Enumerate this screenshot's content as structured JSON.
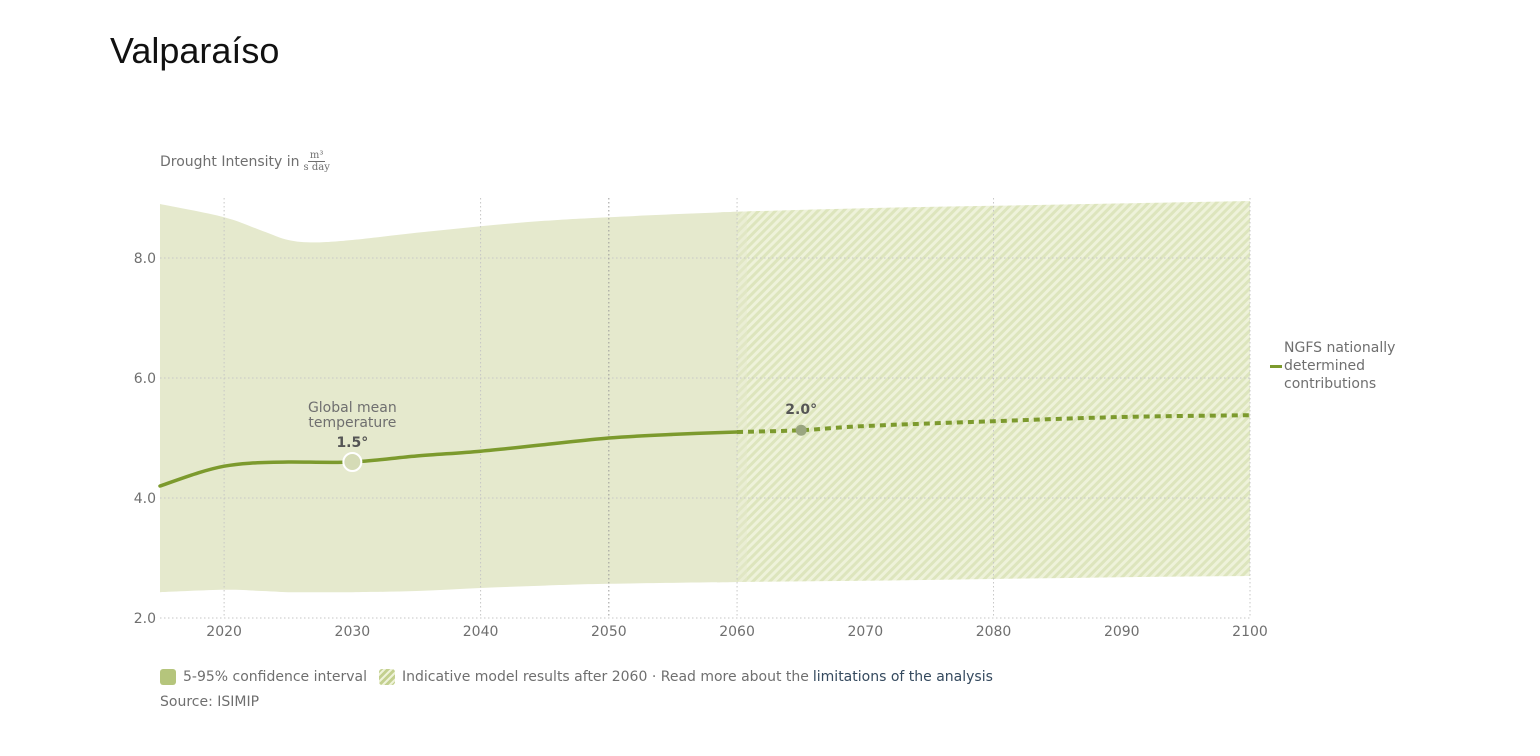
{
  "page_title": "Valparaíso",
  "y_axis_label": {
    "prefix": "Drought Intensity in",
    "unit_numerator": "m³",
    "unit_denominator": "s day"
  },
  "colors": {
    "line": "#7c9a2d",
    "band": "#e5e9cd",
    "hatch": "#d9e2b3",
    "grid": "#bfbfbf",
    "text": "#6f6f6f",
    "link": "#34495e"
  },
  "legend_series": "NGFS nationally determined contributions",
  "legend_series_lines": [
    "NGFS nationally",
    "determined",
    "contributions"
  ],
  "bottom_legend": {
    "confidence": "5-95% confidence interval",
    "indicative": "Indicative model results after 2060 · Read more about the",
    "link": "limitations of the analysis"
  },
  "source": "Source: ISIMIP",
  "annotations": {
    "global_mean_line1": "Global mean",
    "global_mean_line2": "temperature",
    "marker_1": "1.5°",
    "marker_2": "2.0°"
  },
  "chart_data": {
    "type": "line",
    "title": "Valparaíso",
    "xlabel": "",
    "ylabel": "Drought Intensity in m³/(s day)",
    "xlim": [
      2015,
      2100
    ],
    "ylim": [
      2.0,
      9.0
    ],
    "x_ticks": [
      2020,
      2030,
      2040,
      2050,
      2060,
      2070,
      2080,
      2090,
      2100
    ],
    "x_tick_labels": [
      "2020",
      "2030",
      "2040",
      "2050",
      "2060",
      "2070",
      "2080",
      "2090",
      "2100"
    ],
    "x_gridlines": [
      2020,
      2040,
      2050,
      2060,
      2080,
      2100
    ],
    "y_ticks": [
      2.0,
      4.0,
      6.0,
      8.0
    ],
    "y_tick_labels": [
      "2.0",
      "4.0",
      "6.0",
      "8.0"
    ],
    "grid": true,
    "indicative_after": 2060,
    "series": [
      {
        "name": "NGFS nationally determined contributions",
        "x": [
          2015,
          2018,
          2020,
          2022,
          2025,
          2030,
          2035,
          2040,
          2045,
          2050,
          2055,
          2060,
          2065,
          2070,
          2080,
          2090,
          2100
        ],
        "values": [
          4.2,
          4.42,
          4.53,
          4.58,
          4.6,
          4.6,
          4.7,
          4.78,
          4.89,
          5.0,
          5.06,
          5.1,
          5.13,
          5.2,
          5.28,
          5.35,
          5.38
        ]
      }
    ],
    "band": {
      "name": "5-95% confidence interval",
      "x": [
        2015,
        2020,
        2023,
        2025,
        2027,
        2030,
        2035,
        2040,
        2045,
        2050,
        2060,
        2070,
        2080,
        2090,
        2100
      ],
      "upper": [
        8.9,
        8.68,
        8.45,
        8.3,
        8.26,
        8.3,
        8.42,
        8.53,
        8.62,
        8.68,
        8.77,
        8.83,
        8.87,
        8.91,
        8.95
      ],
      "lower": [
        2.43,
        2.47,
        2.45,
        2.43,
        2.43,
        2.43,
        2.45,
        2.5,
        2.54,
        2.57,
        2.6,
        2.62,
        2.65,
        2.68,
        2.7
      ]
    },
    "markers": [
      {
        "x": 2030,
        "y": 4.6,
        "label": "1.5°",
        "annotation": "Global mean temperature"
      },
      {
        "x": 2065,
        "y": 5.13,
        "label": "2.0°"
      }
    ]
  }
}
